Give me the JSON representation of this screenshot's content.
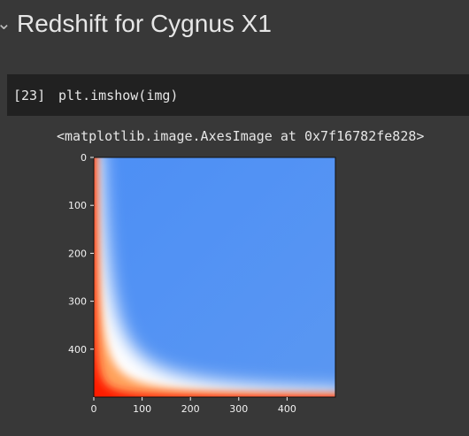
{
  "section": {
    "title": "Redshift for Cygnus X1",
    "collapse_icon": "chevron-down-icon"
  },
  "cell": {
    "execution_count": "[23]",
    "code": "plt.imshow(img)",
    "output": "<matplotlib.image.AxesImage at 0x7f16782fe828>"
  },
  "chart_data": {
    "type": "heatmap",
    "title": "",
    "xlabel": "",
    "ylabel": "",
    "xlim": [
      0,
      500
    ],
    "ylim": [
      500,
      0
    ],
    "xticks": [
      0,
      100,
      200,
      300,
      400
    ],
    "yticks": [
      0,
      100,
      200,
      300,
      400
    ],
    "grid": false,
    "colors": {
      "high": "#ff0000",
      "mid": "#ffffff",
      "low": "#4d8ff5"
    }
  }
}
